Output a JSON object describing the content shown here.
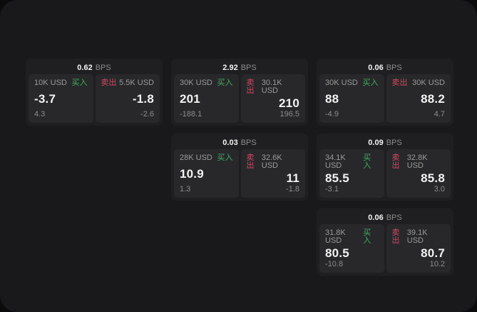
{
  "colors": {
    "page_bg": "#0b0b0c",
    "panel_bg": "#19191b",
    "card_bg": "#1f1f21",
    "tile_bg": "#28282a",
    "text_primary": "#f2f2f2",
    "text_muted": "#9a9a9a",
    "buy_green": "#3fae62",
    "sell_red": "#cf4a63"
  },
  "labels": {
    "bps_unit": "BPS",
    "buy": "买入",
    "sell": "卖出"
  },
  "cards": [
    {
      "row": 1,
      "col": 1,
      "bps": "0.62",
      "buy": {
        "amount": "10K USD",
        "price": "-3.7",
        "delta": "4.3"
      },
      "sell": {
        "amount": "5.5K USD",
        "price": "-1.8",
        "delta": "-2.6"
      }
    },
    {
      "row": 1,
      "col": 2,
      "bps": "2.92",
      "buy": {
        "amount": "30K USD",
        "price": "201",
        "delta": "-188.1"
      },
      "sell": {
        "amount": "30.1K USD",
        "price": "210",
        "delta": "196.5"
      }
    },
    {
      "row": 1,
      "col": 3,
      "bps": "0.06",
      "buy": {
        "amount": "30K USD",
        "price": "88",
        "delta": "-4.9"
      },
      "sell": {
        "amount": "30K USD",
        "price": "88.2",
        "delta": "4.7"
      }
    },
    {
      "row": 2,
      "col": 2,
      "bps": "0.03",
      "buy": {
        "amount": "28K USD",
        "price": "10.9",
        "delta": "1.3"
      },
      "sell": {
        "amount": "32.6K USD",
        "price": "11",
        "delta": "-1.8"
      }
    },
    {
      "row": 2,
      "col": 3,
      "bps": "0.09",
      "buy": {
        "amount": "34.1K USD",
        "price": "85.5",
        "delta": "-3.1"
      },
      "sell": {
        "amount": "32.8K USD",
        "price": "85.8",
        "delta": "3.0"
      }
    },
    {
      "row": 3,
      "col": 3,
      "bps": "0.06",
      "buy": {
        "amount": "31.8K USD",
        "price": "80.5",
        "delta": "-10.8"
      },
      "sell": {
        "amount": "39.1K USD",
        "price": "80.7",
        "delta": "10.2"
      }
    }
  ]
}
